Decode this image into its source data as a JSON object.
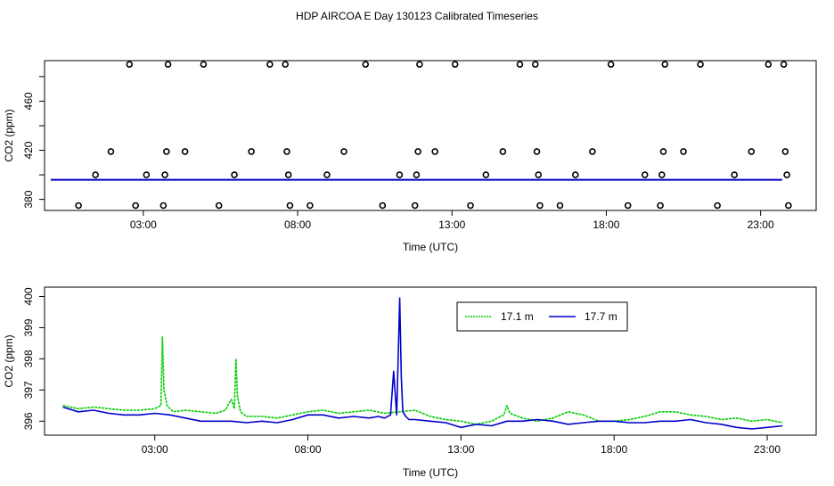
{
  "title": "HDP AIRCOA E  Day 130123  Calibrated Timeseries",
  "chart_data": [
    {
      "type": "scatter",
      "xlabel": "Time (UTC)",
      "ylabel": "CO2 (ppm)",
      "x_ticks": [
        "03:00",
        "08:00",
        "13:00",
        "18:00",
        "23:00"
      ],
      "x_tick_hours": [
        3,
        8,
        13,
        18,
        23
      ],
      "y_ticks": [
        380,
        420,
        460
      ],
      "y_tick_labels": [
        "380",
        "420",
        "460"
      ],
      "xlim": [
        -0.2,
        24.8
      ],
      "ylim": [
        371,
        493
      ],
      "colors": {
        "points": "#000000",
        "line": "#0000cc",
        "line_green": "#00cc00"
      },
      "points": [
        [
          0.9,
          375
        ],
        [
          1.45,
          400
        ],
        [
          1.95,
          419
        ],
        [
          2.55,
          490
        ],
        [
          2.75,
          375
        ],
        [
          3.1,
          400
        ],
        [
          3.65,
          375
        ],
        [
          3.7,
          400
        ],
        [
          3.75,
          419
        ],
        [
          3.8,
          490
        ],
        [
          4.35,
          419
        ],
        [
          4.95,
          490
        ],
        [
          5.45,
          375
        ],
        [
          5.95,
          400
        ],
        [
          6.5,
          419
        ],
        [
          7.1,
          490
        ],
        [
          7.6,
          490
        ],
        [
          7.65,
          419
        ],
        [
          7.7,
          400
        ],
        [
          7.75,
          375
        ],
        [
          8.4,
          375
        ],
        [
          8.95,
          400
        ],
        [
          9.5,
          419
        ],
        [
          10.2,
          490
        ],
        [
          10.75,
          375
        ],
        [
          11.3,
          400
        ],
        [
          11.8,
          375
        ],
        [
          11.85,
          400
        ],
        [
          11.9,
          419
        ],
        [
          11.95,
          490
        ],
        [
          12.45,
          419
        ],
        [
          13.1,
          490
        ],
        [
          13.6,
          375
        ],
        [
          14.1,
          400
        ],
        [
          14.65,
          419
        ],
        [
          15.2,
          490
        ],
        [
          15.7,
          490
        ],
        [
          15.75,
          419
        ],
        [
          15.8,
          400
        ],
        [
          15.85,
          375
        ],
        [
          16.5,
          375
        ],
        [
          17.0,
          400
        ],
        [
          17.55,
          419
        ],
        [
          18.15,
          490
        ],
        [
          18.7,
          375
        ],
        [
          19.25,
          400
        ],
        [
          19.75,
          375
        ],
        [
          19.8,
          400
        ],
        [
          19.85,
          419
        ],
        [
          19.9,
          490
        ],
        [
          20.5,
          419
        ],
        [
          21.05,
          490
        ],
        [
          21.6,
          375
        ],
        [
          22.15,
          400
        ],
        [
          22.7,
          419
        ],
        [
          23.25,
          490
        ],
        [
          23.75,
          490
        ],
        [
          23.8,
          419
        ],
        [
          23.85,
          400
        ],
        [
          23.9,
          375
        ]
      ],
      "mean_line": {
        "x": [
          0.0,
          23.7
        ],
        "y": [
          396.0,
          396.0
        ]
      }
    },
    {
      "type": "line",
      "xlabel": "Time (UTC)",
      "ylabel": "CO2 (ppm)",
      "x_ticks": [
        "03:00",
        "08:00",
        "13:00",
        "18:00",
        "23:00"
      ],
      "x_tick_hours": [
        3,
        8,
        13,
        18,
        23
      ],
      "y_ticks": [
        396,
        397,
        398,
        399,
        400
      ],
      "y_tick_labels": [
        "396",
        "397",
        "398",
        "399",
        "400"
      ],
      "xlim": [
        -0.6,
        24.6
      ],
      "ylim": [
        395.55,
        400.3
      ],
      "legend": {
        "position": "top-right",
        "entries": [
          "17.1 m",
          "17.7 m"
        ]
      },
      "series": [
        {
          "name": "17.1 m",
          "color": "#00cc00",
          "x": [
            0,
            0.5,
            1,
            1.5,
            2,
            2.5,
            3,
            3.2,
            3.25,
            3.3,
            3.4,
            3.6,
            4,
            4.5,
            5,
            5.3,
            5.5,
            5.6,
            5.65,
            5.7,
            5.8,
            6,
            6.5,
            7,
            7.5,
            8,
            8.5,
            9,
            9.5,
            10,
            10.5,
            11,
            11.5,
            12,
            12.5,
            13,
            13.5,
            14,
            14.4,
            14.5,
            14.6,
            15,
            15.5,
            16,
            16.5,
            17,
            17.5,
            18,
            18.5,
            19,
            19.5,
            20,
            20.5,
            21,
            21.5,
            22,
            22.5,
            23,
            23.5
          ],
          "y": [
            396.5,
            396.4,
            396.45,
            396.4,
            396.35,
            396.35,
            396.4,
            396.5,
            398.7,
            397.0,
            396.5,
            396.3,
            396.35,
            396.3,
            396.25,
            396.35,
            396.7,
            396.4,
            398.0,
            396.8,
            396.3,
            396.15,
            396.15,
            396.1,
            396.2,
            396.3,
            396.35,
            396.25,
            396.3,
            396.35,
            396.25,
            396.3,
            396.35,
            396.15,
            396.05,
            396.0,
            395.9,
            396.0,
            396.2,
            396.5,
            396.25,
            396.1,
            396.0,
            396.1,
            396.3,
            396.2,
            396.0,
            396.0,
            396.05,
            396.15,
            396.3,
            396.3,
            396.2,
            396.15,
            396.05,
            396.1,
            396.0,
            396.05,
            395.95
          ]
        },
        {
          "name": "17.7 m",
          "color": "#0000cc",
          "x": [
            0,
            0.5,
            1,
            1.5,
            2,
            2.5,
            3,
            3.5,
            4,
            4.5,
            5,
            5.5,
            6,
            6.5,
            7,
            7.5,
            8,
            8.5,
            9,
            9.5,
            10,
            10.3,
            10.5,
            10.7,
            10.8,
            10.9,
            11,
            11.05,
            11.1,
            11.2,
            11.3,
            11.5,
            12,
            12.5,
            13,
            13.5,
            14,
            14.5,
            15,
            15.5,
            16,
            16.5,
            17,
            17.5,
            18,
            18.5,
            19,
            19.5,
            20,
            20.5,
            21,
            21.5,
            22,
            22.5,
            23,
            23.5
          ],
          "y": [
            396.45,
            396.3,
            396.35,
            396.25,
            396.2,
            396.2,
            396.25,
            396.2,
            396.1,
            396.0,
            396.0,
            396.0,
            395.95,
            396.0,
            395.95,
            396.05,
            396.2,
            396.2,
            396.1,
            396.15,
            396.1,
            396.15,
            396.1,
            396.2,
            397.6,
            396.2,
            399.95,
            397.4,
            396.3,
            396.15,
            396.05,
            396.05,
            396.0,
            395.95,
            395.8,
            395.9,
            395.85,
            396.0,
            396.0,
            396.05,
            396.0,
            395.9,
            395.95,
            396.0,
            396.0,
            395.95,
            395.95,
            396.0,
            396.0,
            396.05,
            395.95,
            395.9,
            395.8,
            395.75,
            395.8,
            395.85
          ]
        }
      ]
    }
  ]
}
